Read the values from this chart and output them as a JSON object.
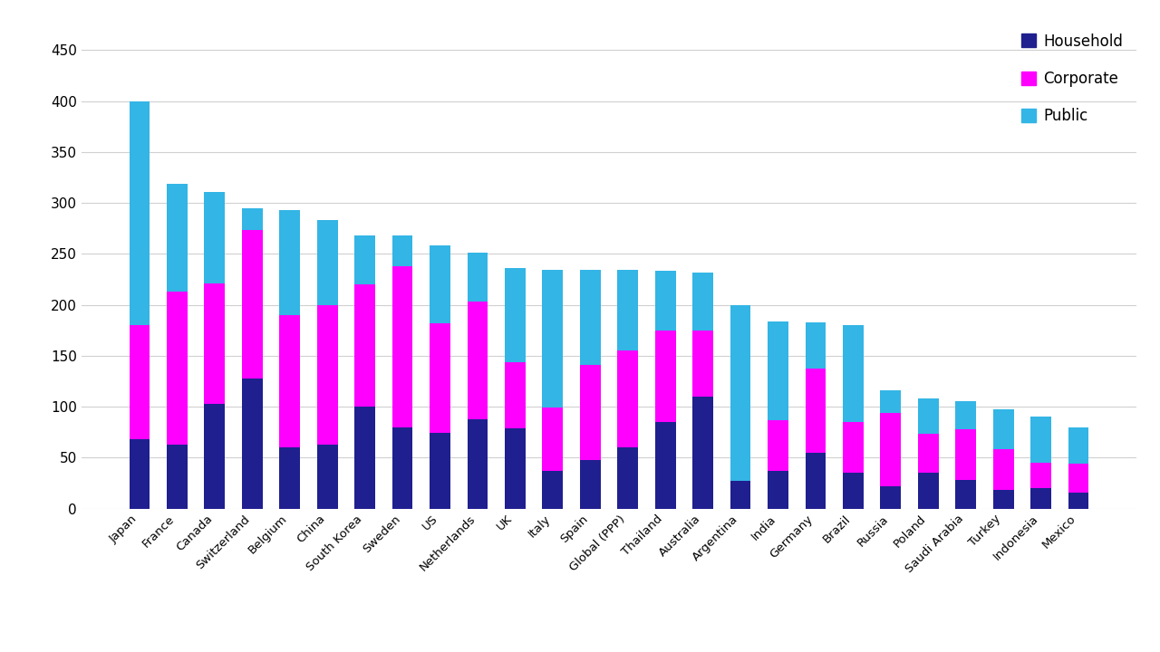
{
  "countries": [
    "Japan",
    "France",
    "Canada",
    "Switzerland",
    "Belgium",
    "China",
    "South Korea",
    "Sweden",
    "US",
    "Netherlands",
    "UK",
    "Italy",
    "Spain",
    "Global (PPP)",
    "Thailand",
    "Australia",
    "Argentina",
    "India",
    "Germany",
    "Brazil",
    "Russia",
    "Poland",
    "Saudi Arabia",
    "Turkey",
    "Indonesia",
    "Mexico"
  ],
  "household": [
    68,
    63,
    103,
    128,
    60,
    63,
    100,
    80,
    74,
    88,
    79,
    37,
    48,
    60,
    85,
    110,
    27,
    37,
    55,
    35,
    22,
    35,
    28,
    18,
    20,
    16
  ],
  "corporate": [
    112,
    150,
    118,
    145,
    130,
    137,
    120,
    158,
    108,
    115,
    65,
    62,
    93,
    95,
    90,
    65,
    0,
    50,
    82,
    50,
    72,
    38,
    50,
    40,
    25,
    28
  ],
  "public": [
    220,
    106,
    90,
    22,
    103,
    83,
    48,
    30,
    76,
    48,
    92,
    135,
    93,
    79,
    58,
    57,
    173,
    97,
    46,
    95,
    22,
    35,
    27,
    39,
    45,
    36
  ],
  "household_color": "#1f1f8f",
  "corporate_color": "#ff00ff",
  "public_color": "#33b5e5",
  "background_color": "#ffffff",
  "grid_color": "#d0d0d0",
  "ylim": [
    0,
    480
  ],
  "yticks": [
    0,
    50,
    100,
    150,
    200,
    250,
    300,
    350,
    400,
    450
  ],
  "legend_labels": [
    "Household",
    "Corporate",
    "Public"
  ],
  "bar_width": 0.55,
  "tick_fontsize": 11,
  "xlabel_fontsize": 9.5
}
